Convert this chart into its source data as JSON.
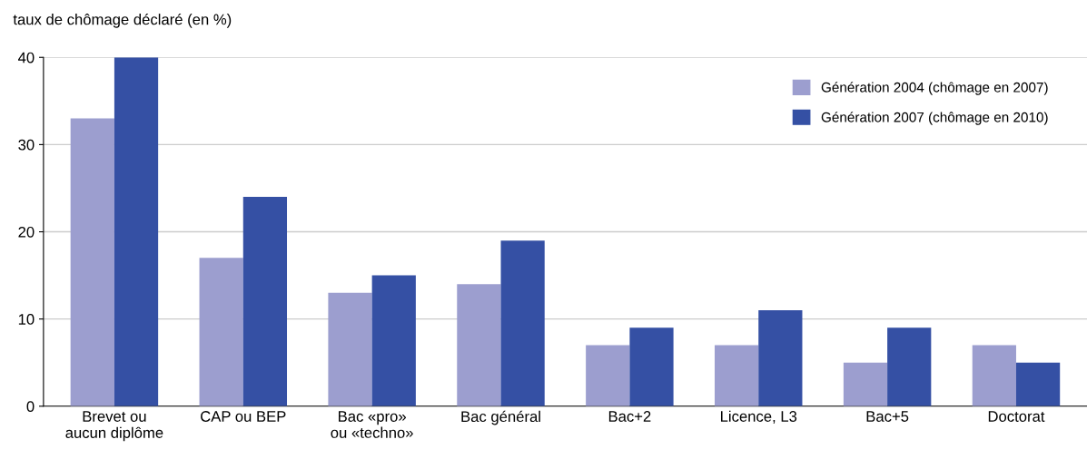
{
  "chart_data": {
    "type": "bar",
    "ylabel": "taux de chômage déclaré (en %)",
    "categories": [
      "Brevet ou\naucun diplôme",
      "CAP ou BEP",
      "Bac «pro»\nou «techno»",
      "Bac général",
      "Bac+2",
      "Licence, L3",
      "Bac+5",
      "Doctorat"
    ],
    "series": [
      {
        "name": "Génération 2004 (chômage en 2007)",
        "color": "#9c9ecf",
        "values": [
          33,
          17,
          13,
          14,
          7,
          7,
          5,
          7
        ]
      },
      {
        "name": "Génération 2007 (chômage en 2010)",
        "color": "#3550a4",
        "values": [
          40,
          24,
          15,
          19,
          9,
          11,
          9,
          5
        ]
      }
    ],
    "ylim": [
      0,
      40
    ],
    "yticks": [
      0,
      10,
      20,
      30,
      40
    ],
    "grid": "y",
    "legend": "top right"
  }
}
